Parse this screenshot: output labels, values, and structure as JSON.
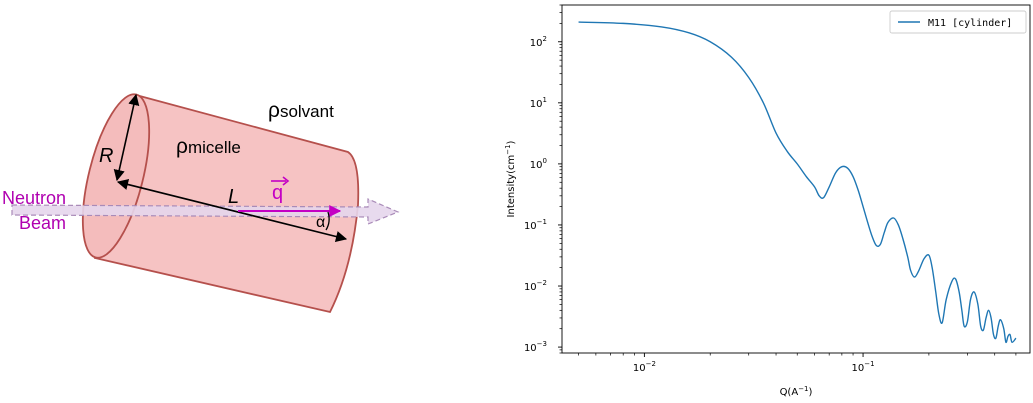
{
  "diagram": {
    "rho_solvant": {
      "base": "ρ",
      "sub": "solvant"
    },
    "rho_micelle": {
      "base": "ρ",
      "sub": "micelle"
    },
    "label_R": "R",
    "label_L": "L",
    "label_q": "q",
    "label_alpha": "α",
    "beam_line1": "Neutron",
    "beam_line2": "Beam",
    "colors": {
      "cylinder_fill": "#f6c3c3",
      "cylinder_stroke": "#b5504c",
      "beam_fill": "#e6d6ec",
      "beam_stroke": "#a98bb8",
      "q_color": "#c400c4",
      "beam_text": "#b000b0"
    }
  },
  "chart_data": {
    "type": "line",
    "x_scale": "log",
    "y_scale": "log",
    "xlim": [
      0.0042,
      0.58
    ],
    "ylim": [
      0.0008,
      400
    ],
    "xlabel": {
      "base": "Q(A",
      "sup": "−1",
      "end": ")"
    },
    "ylabel": {
      "base": "Intensity(cm",
      "sup": "−1",
      "end": ")"
    },
    "x_ticks": [
      {
        "value": 0.01,
        "mantissa": "10",
        "exp": "−2"
      },
      {
        "value": 0.1,
        "mantissa": "10",
        "exp": "−1"
      }
    ],
    "y_ticks": [
      {
        "value": 0.001,
        "mantissa": "10",
        "exp": "−3"
      },
      {
        "value": 0.01,
        "mantissa": "10",
        "exp": "−2"
      },
      {
        "value": 0.1,
        "mantissa": "10",
        "exp": "−1"
      },
      {
        "value": 1,
        "mantissa": "10",
        "exp": "0"
      },
      {
        "value": 10,
        "mantissa": "10",
        "exp": "1"
      },
      {
        "value": 100,
        "mantissa": "10",
        "exp": "2"
      }
    ],
    "legend": {
      "position": "top-right",
      "entries": [
        "M11 [cylinder]"
      ]
    },
    "series": [
      {
        "name": "M11 [cylinder]",
        "color": "#1f77b4",
        "x": [
          0.005,
          0.008,
          0.012,
          0.016,
          0.02,
          0.025,
          0.03,
          0.035,
          0.04,
          0.045,
          0.05,
          0.055,
          0.06,
          0.063,
          0.066,
          0.07,
          0.075,
          0.08,
          0.085,
          0.09,
          0.095,
          0.1,
          0.105,
          0.11,
          0.115,
          0.12,
          0.125,
          0.13,
          0.138,
          0.145,
          0.152,
          0.16,
          0.165,
          0.172,
          0.18,
          0.19,
          0.2,
          0.207,
          0.215,
          0.222,
          0.23,
          0.24,
          0.255,
          0.265,
          0.275,
          0.283,
          0.29,
          0.3,
          0.31,
          0.322,
          0.335,
          0.345,
          0.355,
          0.365,
          0.375,
          0.385,
          0.395,
          0.405,
          0.415,
          0.425,
          0.44,
          0.45,
          0.46,
          0.47,
          0.48,
          0.5
        ],
        "y": [
          210,
          200,
          175,
          140,
          100,
          56,
          26,
          10,
          3.2,
          1.6,
          1.0,
          0.62,
          0.42,
          0.3,
          0.28,
          0.42,
          0.72,
          0.9,
          0.85,
          0.62,
          0.37,
          0.2,
          0.11,
          0.065,
          0.046,
          0.048,
          0.075,
          0.11,
          0.13,
          0.1,
          0.06,
          0.03,
          0.018,
          0.014,
          0.018,
          0.028,
          0.032,
          0.02,
          0.008,
          0.0035,
          0.0025,
          0.006,
          0.012,
          0.013,
          0.008,
          0.004,
          0.0022,
          0.0026,
          0.006,
          0.008,
          0.005,
          0.0022,
          0.0019,
          0.003,
          0.004,
          0.003,
          0.0016,
          0.0014,
          0.0022,
          0.0028,
          0.002,
          0.0012,
          0.0015,
          0.0016,
          0.0012,
          0.0014
        ]
      }
    ]
  }
}
